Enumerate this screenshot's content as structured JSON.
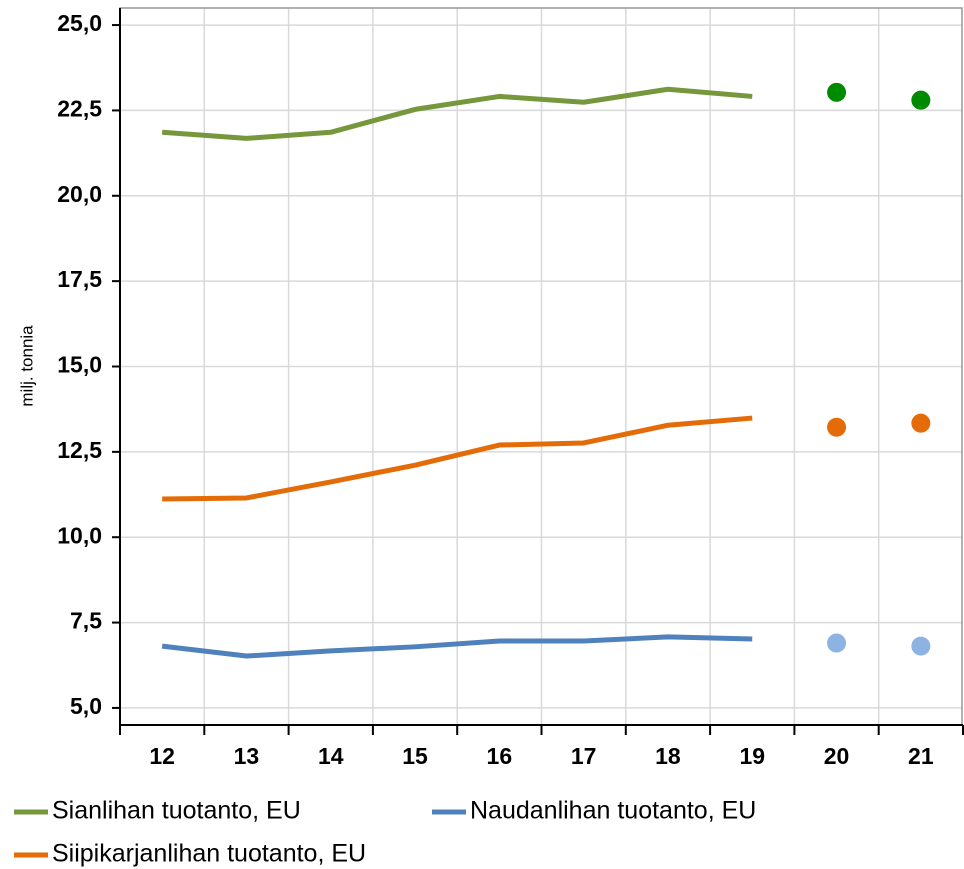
{
  "chart_data": {
    "type": "line",
    "y_label": "milj. tonnia",
    "categories": [
      "12",
      "13",
      "14",
      "15",
      "16",
      "17",
      "18",
      "19",
      "20",
      "21"
    ],
    "ylim": [
      4.5,
      25.5
    ],
    "yticks": [
      {
        "value": 5,
        "label": "5,0"
      },
      {
        "value": 7.5,
        "label": "7,5"
      },
      {
        "value": 10,
        "label": "10,0"
      },
      {
        "value": 12.5,
        "label": "12,5"
      },
      {
        "value": 15,
        "label": "15,0"
      },
      {
        "value": 17.5,
        "label": "17,5"
      },
      {
        "value": 20,
        "label": "20,0"
      },
      {
        "value": 22.5,
        "label": "22,5"
      },
      {
        "value": 25,
        "label": "25,0"
      }
    ],
    "grid": true,
    "series": [
      {
        "name": "Sianlihan tuotanto, EU",
        "color": "#76973b",
        "forecast_color": "#008a00",
        "values": [
          21.86,
          21.68,
          21.86,
          22.53,
          22.91,
          22.74,
          23.12,
          22.91,
          null,
          null
        ],
        "forecast": [
          null,
          null,
          null,
          null,
          null,
          null,
          null,
          null,
          23.03,
          22.8
        ]
      },
      {
        "name": "Naudanlihan tuotanto, EU",
        "color": "#4f81bd",
        "forecast_color": "#8db3e2",
        "values": [
          6.81,
          6.52,
          6.67,
          6.79,
          6.96,
          6.96,
          7.08,
          7.02,
          null,
          null
        ],
        "forecast": [
          null,
          null,
          null,
          null,
          null,
          null,
          null,
          null,
          6.9,
          6.81
        ]
      },
      {
        "name": "Siipikarjanlihan tuotanto, EU",
        "color": "#e36c09",
        "forecast_color": "#e36c09",
        "values": [
          11.12,
          11.15,
          11.62,
          12.11,
          12.7,
          12.76,
          13.28,
          13.49,
          null,
          null
        ],
        "forecast": [
          null,
          null,
          null,
          null,
          null,
          null,
          null,
          null,
          13.22,
          13.34
        ]
      }
    ]
  }
}
